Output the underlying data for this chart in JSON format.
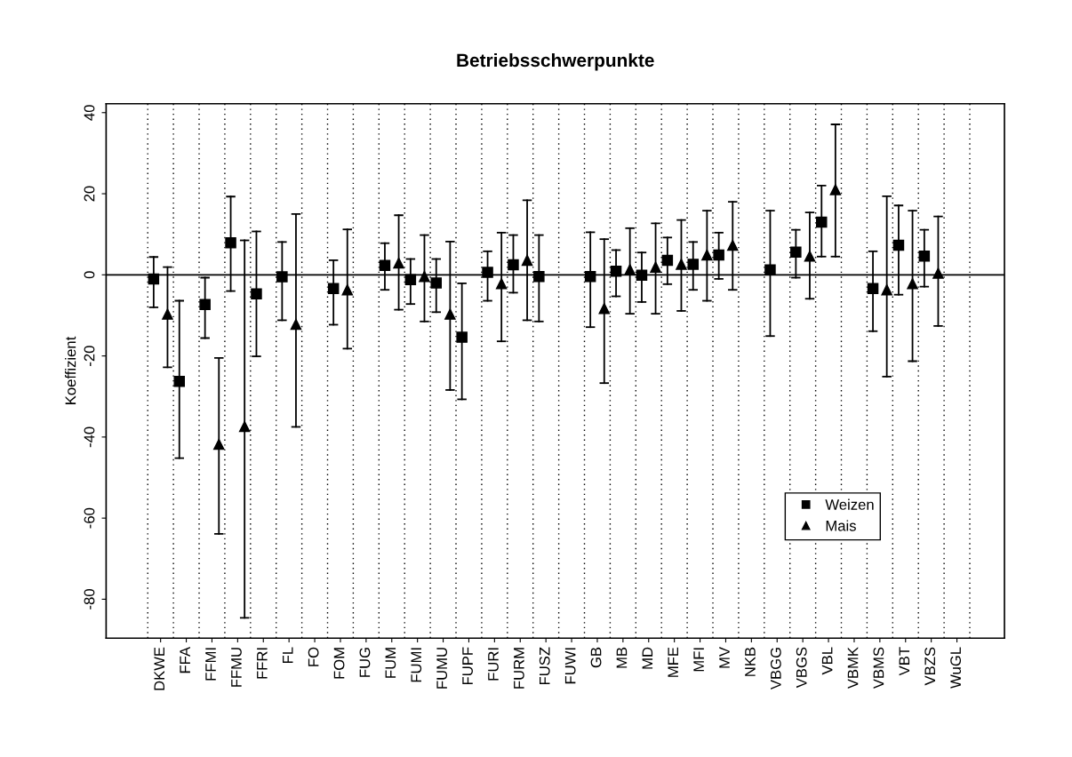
{
  "chart_data": {
    "type": "scatter",
    "title": "Betriebsschwerpunkte",
    "ylabel": "Koeffizient",
    "categories": [
      "DKWE",
      "FFA",
      "FFMI",
      "FFMU",
      "FFRI",
      "FL",
      "FO",
      "FOM",
      "FUG",
      "FUM",
      "FUMI",
      "FUMU",
      "FUPF",
      "FURI",
      "FURM",
      "FUSZ",
      "FUWI",
      "GB",
      "MB",
      "MD",
      "MFE",
      "MFI",
      "MV",
      "NKB",
      "VBGG",
      "VBGS",
      "VBL",
      "VBMK",
      "VBMS",
      "VBT",
      "VBZS",
      "WuGL"
    ],
    "series": [
      {
        "name": "Weizen",
        "color": "#000000",
        "marker": "square",
        "values": [
          -1.0,
          -26.3,
          -7.3,
          7.9,
          -4.7,
          -0.5,
          null,
          -3.4,
          null,
          2.3,
          -1.2,
          -2.0,
          -15.4,
          0.6,
          2.5,
          -0.4,
          null,
          -0.4,
          0.9,
          -0.1,
          3.6,
          2.6,
          4.9,
          null,
          1.2,
          5.6,
          13.0,
          null,
          -3.4,
          7.3,
          4.6,
          null
        ],
        "errors": [
          [
            -8.0,
            4.4
          ],
          [
            -45.2,
            -6.4
          ],
          [
            -15.6,
            -0.7
          ],
          [
            -4.0,
            19.3
          ],
          [
            -20.1,
            10.7
          ],
          [
            -11.2,
            8.1
          ],
          null,
          [
            -12.3,
            3.6
          ],
          null,
          [
            -3.7,
            7.8
          ],
          [
            -7.2,
            3.9
          ],
          [
            -9.2,
            3.9
          ],
          [
            -30.7,
            -2.1
          ],
          [
            -6.4,
            5.8
          ],
          [
            -4.4,
            9.8
          ],
          [
            -11.5,
            9.8
          ],
          null,
          [
            -12.9,
            10.5
          ],
          [
            -5.3,
            6.1
          ],
          [
            -6.7,
            5.5
          ],
          [
            -2.3,
            9.2
          ],
          [
            -3.7,
            8.1
          ],
          [
            -1.0,
            10.4
          ],
          null,
          [
            -15.1,
            15.8
          ],
          [
            -0.7,
            11.1
          ],
          [
            4.5,
            22.0
          ],
          null,
          [
            -13.9,
            5.8
          ],
          [
            -4.9,
            17.1
          ],
          [
            -2.9,
            11.1
          ],
          null
        ]
      },
      {
        "name": "Mais",
        "color": "#000000",
        "marker": "triangle",
        "values": [
          -9.7,
          null,
          -41.8,
          -37.4,
          null,
          -12.2,
          null,
          -3.7,
          null,
          2.9,
          -0.4,
          -9.7,
          null,
          -2.2,
          3.6,
          null,
          null,
          -8.3,
          1.3,
          1.9,
          2.6,
          4.9,
          7.3,
          null,
          null,
          4.6,
          21.0,
          null,
          -3.7,
          -2.2,
          0.4,
          null
        ],
        "errors": [
          [
            -22.8,
            1.9
          ],
          null,
          [
            -63.9,
            -20.5
          ],
          [
            -84.6,
            8.5
          ],
          null,
          [
            -37.5,
            15.0
          ],
          null,
          [
            -18.2,
            11.2
          ],
          null,
          [
            -8.6,
            14.7
          ],
          [
            -11.5,
            9.8
          ],
          [
            -28.4,
            8.2
          ],
          null,
          [
            -16.4,
            10.4
          ],
          [
            -11.2,
            18.4
          ],
          null,
          null,
          [
            -26.7,
            8.8
          ],
          [
            -9.6,
            11.5
          ],
          [
            -9.6,
            12.7
          ],
          [
            -8.9,
            13.5
          ],
          [
            -6.4,
            15.8
          ],
          [
            -3.7,
            18.0
          ],
          null,
          null,
          [
            -5.9,
            15.4
          ],
          [
            4.5,
            37.1
          ],
          null,
          [
            -25.1,
            19.4
          ],
          [
            -21.3,
            15.8
          ],
          [
            -12.6,
            14.4
          ],
          null
        ]
      }
    ],
    "ylim": [
      -89.6,
      42.2
    ],
    "yticks": [
      {
        "value": -80,
        "label": "-80"
      },
      {
        "value": -60,
        "label": "-60"
      },
      {
        "value": -40,
        "label": "-40"
      },
      {
        "value": -20,
        "label": "-20"
      },
      0,
      20,
      40
    ],
    "ref_lines": [
      {
        "axis": "y",
        "value": 0,
        "color": "#000000",
        "line_style": "solid"
      }
    ],
    "grid": "x",
    "legend": "bottom right"
  }
}
